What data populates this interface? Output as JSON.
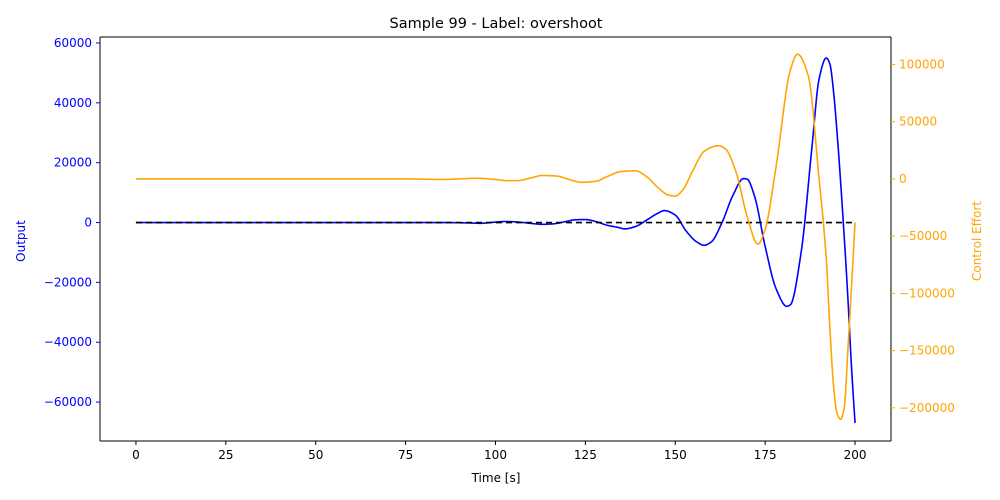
{
  "chart_data": {
    "type": "line",
    "title": "Sample 99 - Label: overshoot",
    "xlabel": "Time [s]",
    "ylabel_left": "Output",
    "ylabel_right": "Control Effort",
    "xlim": [
      -10,
      210
    ],
    "ylim_left": [
      -73000,
      62000
    ],
    "ylim_right": [
      -229000,
      124000
    ],
    "x_ticks": [
      0,
      25,
      50,
      75,
      100,
      125,
      150,
      175,
      200
    ],
    "x_tick_labels": [
      "0",
      "25",
      "50",
      "75",
      "100",
      "125",
      "150",
      "175",
      "200"
    ],
    "y_left_ticks": [
      60000,
      40000,
      20000,
      0,
      -20000,
      -40000,
      -60000
    ],
    "y_left_tick_labels": [
      "60000",
      "40000",
      "20000",
      "0",
      "−20000",
      "−40000",
      "−60000"
    ],
    "y_right_ticks": [
      100000,
      50000,
      0,
      -50000,
      -100000,
      -150000,
      -200000
    ],
    "y_right_tick_labels": [
      "100000",
      "50000",
      "0",
      "−50000",
      "−100000",
      "−150000",
      "−200000"
    ],
    "grid": false,
    "colors": {
      "output": "#0000ff",
      "control": "#ffa500",
      "reference": "#000000",
      "left_axis": "#0000ff",
      "right_axis": "#ffa500"
    },
    "series": [
      {
        "axis": "left",
        "style": "solid",
        "x": [
          0,
          25,
          50,
          75,
          85,
          92,
          96,
          100,
          103,
          106,
          110,
          113,
          116,
          120,
          122,
          125,
          128,
          131,
          134,
          136,
          139,
          142,
          145,
          147,
          150,
          153,
          156,
          158,
          160,
          163,
          166,
          169,
          170,
          172,
          175,
          178,
          181,
          182,
          185,
          188,
          190,
          192,
          193,
          194,
          195,
          197,
          198,
          199,
          200
        ],
        "values": [
          0,
          0,
          0,
          0,
          0,
          -120,
          -250,
          150,
          350,
          200,
          -300,
          -600,
          -450,
          450,
          900,
          1000,
          300,
          -900,
          -1600,
          -2100,
          -1300,
          800,
          3000,
          4000,
          2500,
          -2800,
          -6500,
          -7600,
          -6500,
          0,
          9000,
          14700,
          14500,
          9000,
          -8000,
          -22000,
          -28000,
          -27500,
          -10000,
          25000,
          48000,
          55000,
          53000,
          44000,
          30000,
          -5000,
          -25000,
          -48000,
          -67000
        ]
      },
      {
        "axis": "right",
        "style": "solid",
        "x": [
          0,
          25,
          50,
          75,
          85,
          95,
          100,
          103,
          106,
          110,
          113,
          117,
          120,
          124,
          128,
          131,
          135,
          139,
          142,
          145,
          148,
          150,
          152,
          155,
          158,
          162,
          164,
          167,
          170,
          173,
          175,
          178,
          182,
          184,
          187,
          190,
          192,
          193,
          194,
          195,
          196,
          197,
          198,
          199,
          200
        ],
        "values": [
          0,
          0,
          0,
          0,
          -500,
          500,
          -500,
          -1500,
          -1500,
          1000,
          3000,
          2500,
          0,
          -3000,
          -2000,
          2000,
          6500,
          7000,
          2000,
          -7000,
          -14000,
          -15000,
          -10000,
          8000,
          24000,
          29000,
          26000,
          5000,
          -33000,
          -57000,
          -44000,
          10000,
          95000,
          109000,
          90000,
          0,
          -70000,
          -130000,
          -180000,
          -205000,
          -210000,
          -200000,
          -150000,
          -95000,
          -38000
        ]
      },
      {
        "axis": "left",
        "style": "dashed",
        "x": [
          0,
          200
        ],
        "values": [
          0,
          0
        ]
      }
    ]
  }
}
